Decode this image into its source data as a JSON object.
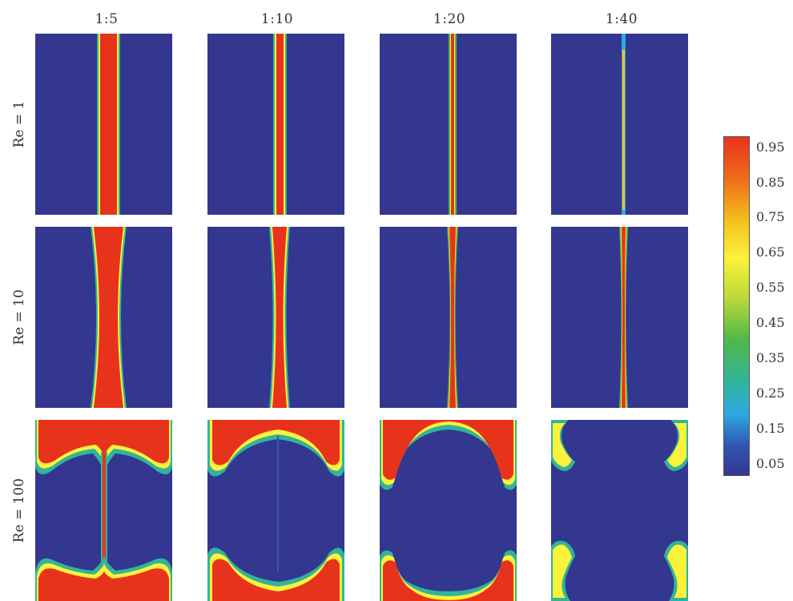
{
  "columns": [
    "1:5",
    "1:10",
    "1:20",
    "1:40"
  ],
  "rows": [
    "Re = 1",
    "Re = 10",
    "Re = 100"
  ],
  "colorbar": {
    "ticks": [
      "0.95",
      "0.85",
      "0.75",
      "0.65",
      "0.55",
      "0.45",
      "0.35",
      "0.25",
      "0.15",
      "0.05"
    ],
    "colors": {
      "high": "#e8331c",
      "mid": "#fbf23b",
      "low": "#33378f",
      "edge_green": "#4fb848",
      "edge_cyan": "#2ea9e1"
    }
  }
}
